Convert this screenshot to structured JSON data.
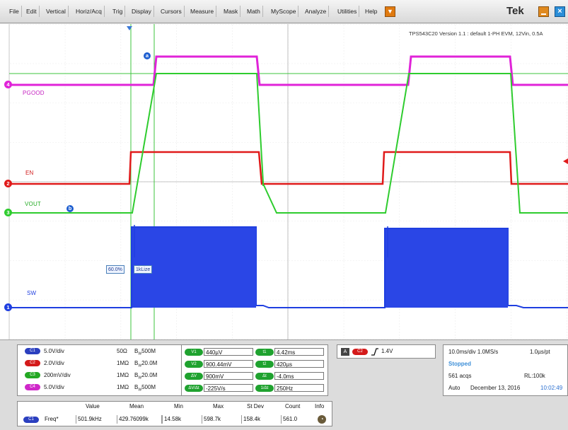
{
  "menu": {
    "items": [
      "File",
      "Edit",
      "Vertical",
      "Horiz/Acq",
      "Trig",
      "Display",
      "Cursors",
      "Measure",
      "Mask",
      "Math",
      "MyScope",
      "Analyze",
      "Utilities",
      "Help"
    ],
    "brand": "Tek"
  },
  "screen": {
    "caption": "TPS543C20 Version 1.1 : default 1-PH EVM, 12Vin, 0.5A",
    "labels": {
      "pgood": "PGOOD",
      "en": "EN",
      "vout": "VOUT",
      "sw": "SW"
    },
    "ch_markers": {
      "ch4": "4",
      "ch2": "2",
      "ch3": "3",
      "ch1": "1"
    },
    "cursor_markers": {
      "a": "a",
      "b": "b"
    },
    "cursor_readout_1": "60.0%",
    "cursor_readout_2": "1kLize",
    "colors": {
      "ch1": "#1f3fe0",
      "ch2": "#e01a1a",
      "ch3": "#2ecc2e",
      "ch4": "#e023d8"
    }
  },
  "channels": [
    {
      "badge": "C1",
      "scale": "5.0V/div",
      "imp": "50Ω",
      "bw": "500M",
      "color": "#2b3fbf"
    },
    {
      "badge": "C2",
      "scale": "2.0V/div",
      "imp": "1MΩ",
      "bw": "20.0M",
      "color": "#d41a1a"
    },
    {
      "badge": "C3",
      "scale": "200mV/div",
      "imp": "1MΩ",
      "bw": "20.0M",
      "color": "#23a823"
    },
    {
      "badge": "C4",
      "scale": "5.0V/div",
      "imp": "1MΩ",
      "bw": "500M",
      "color": "#cf27c9"
    }
  ],
  "bw_prefix": "B",
  "bw_sub": "W",
  "cursors": {
    "left": [
      {
        "badge": "V1",
        "value": "440µV"
      },
      {
        "badge": "V2",
        "value": "900.44mV"
      },
      {
        "badge": "ΔV",
        "value": "900mV"
      },
      {
        "badge": "ΔV/Δt",
        "value": "-225V/s"
      }
    ],
    "right": [
      {
        "badge": "t1",
        "value": "4.42ms"
      },
      {
        "badge": "t2",
        "value": "420µs"
      },
      {
        "badge": "Δt",
        "value": "-4.0ms"
      },
      {
        "badge": "1/Δt",
        "value": "250Hz"
      }
    ]
  },
  "trigger": {
    "mode": "A",
    "source": "C2",
    "level": "1.4V",
    "slope_icon": "rising-edge-icon"
  },
  "acq": {
    "timebase": "10.0ms/div 1.0MS/s",
    "sample": "1.0µs/pt",
    "status": "Stopped",
    "acqs": "561 acqs",
    "rl": "RL:100k",
    "mode": "Auto",
    "date": "December 13, 2016",
    "time": "10:02:49"
  },
  "meas": {
    "headers": [
      "Value",
      "Mean",
      "Min",
      "Max",
      "St Dev",
      "Count",
      "Info"
    ],
    "badge": "C1",
    "name": "Freq*",
    "values": [
      "501.9kHz",
      "429.76099k",
      "14.58k",
      "598.7k",
      "158.4k",
      "561.0"
    ]
  }
}
